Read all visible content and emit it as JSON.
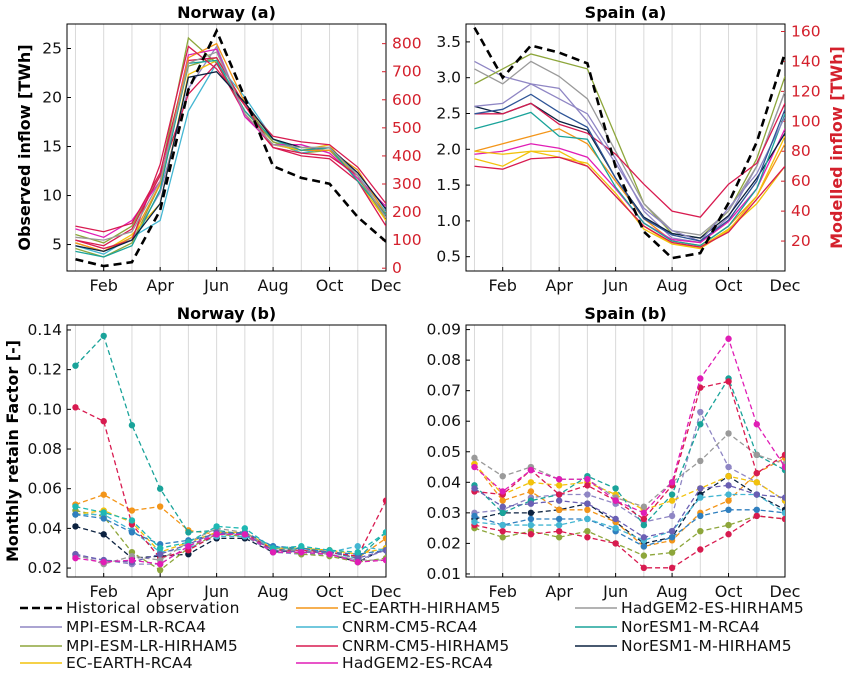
{
  "chart_data": [
    {
      "type": "line",
      "title": "Norway (a)",
      "ylabel": "Observed inflow [TWh]",
      "y2label": "",
      "xticks": [
        "Feb",
        "Apr",
        "Jun",
        "Aug",
        "Oct",
        "Dec"
      ],
      "x": [
        1,
        2,
        3,
        4,
        5,
        6,
        7,
        8,
        9,
        10,
        11,
        12
      ],
      "ylim": [
        2.3,
        27.5
      ],
      "yticks": [
        5,
        10,
        15,
        20,
        25
      ],
      "y2lim": [
        -10,
        870
      ],
      "y2ticks": [
        0,
        100,
        200,
        300,
        400,
        500,
        600,
        700,
        800
      ],
      "observed": [
        3.5,
        2.8,
        3.2,
        8.5,
        20.8,
        26.8,
        20.0,
        13.0,
        11.8,
        11.2,
        7.8,
        5.3
      ],
      "models_right_axis": [
        [
          90,
          60,
          100,
          270,
          640,
          790,
          540,
          440,
          420,
          420,
          340,
          210
        ],
        [
          70,
          40,
          90,
          300,
          720,
          750,
          580,
          450,
          420,
          420,
          320,
          190
        ],
        [
          120,
          90,
          150,
          330,
          820,
          730,
          560,
          450,
          410,
          420,
          330,
          170
        ],
        [
          80,
          50,
          110,
          170,
          560,
          730,
          610,
          460,
          410,
          430,
          330,
          200
        ],
        [
          90,
          60,
          120,
          230,
          690,
          740,
          550,
          440,
          420,
          440,
          310,
          170
        ],
        [
          100,
          80,
          140,
          330,
          620,
          730,
          550,
          430,
          400,
          390,
          310,
          150
        ],
        [
          140,
          110,
          170,
          310,
          760,
          780,
          540,
          440,
          440,
          410,
          320,
          220
        ],
        [
          150,
          130,
          160,
          340,
          740,
          750,
          580,
          470,
          450,
          440,
          360,
          230
        ],
        [
          90,
          60,
          110,
          300,
          750,
          800,
          590,
          460,
          420,
          420,
          350,
          190
        ],
        [
          60,
          40,
          80,
          280,
          730,
          740,
          560,
          460,
          420,
          430,
          310,
          190
        ],
        [
          100,
          70,
          100,
          370,
          790,
          710,
          580,
          430,
          410,
          400,
          330,
          180
        ],
        [
          80,
          60,
          100,
          230,
          680,
          700,
          590,
          460,
          430,
          430,
          340,
          210
        ],
        [
          110,
          100,
          130,
          310,
          730,
          770,
          550,
          440,
          430,
          430,
          330,
          180
        ]
      ]
    },
    {
      "type": "line",
      "title": "Spain (a)",
      "ylabel": "",
      "y2label": "Modelled inflow [TWh]",
      "xticks": [
        "Feb",
        "Apr",
        "Jun",
        "Aug",
        "Oct",
        "Dec"
      ],
      "x": [
        1,
        2,
        3,
        4,
        5,
        6,
        7,
        8,
        9,
        10,
        11,
        12
      ],
      "ylim": [
        0.3,
        3.75
      ],
      "yticks": [
        0.5,
        1.0,
        1.5,
        2.0,
        2.5,
        3.0,
        3.5
      ],
      "y2lim": [
        0,
        165
      ],
      "y2ticks": [
        20,
        40,
        60,
        80,
        100,
        120,
        140,
        160
      ],
      "observed": [
        3.7,
        3.0,
        3.45,
        3.35,
        3.2,
        1.75,
        0.85,
        0.48,
        0.55,
        1.25,
        2.1,
        3.35
      ],
      "models_right_axis": [
        [
          140,
          130,
          125,
          115,
          105,
          75,
          40,
          22,
          19,
          36,
          70,
          120
        ],
        [
          125,
          135,
          145,
          140,
          135,
          90,
          45,
          25,
          22,
          40,
          75,
          130
        ],
        [
          135,
          125,
          140,
          130,
          115,
          80,
          45,
          27,
          24,
          40,
          70,
          120
        ],
        [
          75,
          70,
          80,
          80,
          70,
          50,
          30,
          18,
          16,
          28,
          45,
          70
        ],
        [
          80,
          85,
          90,
          95,
          85,
          60,
          35,
          20,
          17,
          30,
          50,
          85
        ],
        [
          78,
          80,
          85,
          82,
          76,
          55,
          32,
          21,
          19,
          33,
          55,
          95
        ],
        [
          110,
          105,
          112,
          100,
          94,
          62,
          36,
          25,
          22,
          37,
          62,
          92
        ],
        [
          95,
          100,
          106,
          90,
          88,
          56,
          32,
          20,
          17,
          30,
          55,
          105
        ],
        [
          80,
          78,
          80,
          76,
          72,
          52,
          28,
          18,
          15,
          27,
          50,
          90
        ],
        [
          105,
          105,
          112,
          98,
          92,
          78,
          58,
          40,
          36,
          58,
          72,
          112
        ],
        [
          110,
          112,
          125,
          122,
          100,
          72,
          42,
          27,
          20,
          42,
          65,
          103
        ],
        [
          105,
          108,
          118,
          106,
          96,
          62,
          35,
          24,
          20,
          34,
          60,
          108
        ],
        [
          70,
          68,
          75,
          76,
          70,
          50,
          30,
          19,
          16,
          26,
          48,
          70
        ]
      ]
    },
    {
      "type": "line",
      "title": "Norway (b)",
      "ylabel": "Monthly retain Factor [-]",
      "xticks": [
        "Feb",
        "Apr",
        "Jun",
        "Aug",
        "Oct",
        "Dec"
      ],
      "x": [
        1,
        2,
        3,
        4,
        5,
        6,
        7,
        8,
        9,
        10,
        11,
        12
      ],
      "ylim": [
        0.0155,
        0.1425
      ],
      "yticks": [
        0.02,
        0.04,
        0.06,
        0.08,
        0.1,
        0.12,
        0.14
      ],
      "series": [
        [
          0.041,
          0.037,
          0.025,
          0.026,
          0.027,
          0.035,
          0.035,
          0.028,
          0.029,
          0.027,
          0.023,
          0.03
        ],
        [
          0.026,
          0.024,
          0.022,
          0.022,
          0.031,
          0.038,
          0.036,
          0.028,
          0.027,
          0.027,
          0.024,
          0.029
        ],
        [
          0.049,
          0.046,
          0.028,
          0.019,
          0.03,
          0.037,
          0.036,
          0.03,
          0.027,
          0.026,
          0.023,
          0.025
        ],
        [
          0.052,
          0.057,
          0.049,
          0.051,
          0.039,
          0.037,
          0.037,
          0.03,
          0.03,
          0.029,
          0.025,
          0.035
        ],
        [
          0.047,
          0.049,
          0.043,
          0.028,
          0.033,
          0.038,
          0.038,
          0.03,
          0.03,
          0.029,
          0.027,
          0.03
        ],
        [
          0.047,
          0.047,
          0.039,
          0.028,
          0.03,
          0.036,
          0.036,
          0.031,
          0.029,
          0.028,
          0.031,
          0.029
        ],
        [
          0.122,
          0.137,
          0.092,
          0.06,
          0.038,
          0.039,
          0.037,
          0.029,
          0.03,
          0.028,
          0.025,
          0.038
        ],
        [
          0.101,
          0.094,
          0.042,
          0.025,
          0.029,
          0.037,
          0.038,
          0.029,
          0.029,
          0.028,
          0.026,
          0.054
        ],
        [
          0.027,
          0.022,
          0.026,
          0.024,
          0.033,
          0.04,
          0.038,
          0.029,
          0.029,
          0.027,
          0.024,
          0.024
        ],
        [
          0.047,
          0.045,
          0.038,
          0.032,
          0.034,
          0.037,
          0.038,
          0.031,
          0.03,
          0.028,
          0.027,
          0.029
        ],
        [
          0.027,
          0.024,
          0.023,
          0.027,
          0.032,
          0.038,
          0.037,
          0.029,
          0.028,
          0.028,
          0.025,
          0.029
        ],
        [
          0.051,
          0.048,
          0.044,
          0.03,
          0.033,
          0.041,
          0.04,
          0.03,
          0.031,
          0.029,
          0.028,
          0.038
        ],
        [
          0.025,
          0.023,
          0.024,
          0.022,
          0.031,
          0.037,
          0.037,
          0.028,
          0.028,
          0.027,
          0.023,
          0.024
        ]
      ]
    },
    {
      "type": "line",
      "title": "Spain (b)",
      "ylabel": "",
      "xticks": [
        "Feb",
        "Apr",
        "Jun",
        "Aug",
        "Oct",
        "Dec"
      ],
      "x": [
        1,
        2,
        3,
        4,
        5,
        6,
        7,
        8,
        9,
        10,
        11,
        12
      ],
      "ylim": [
        0.009,
        0.0915
      ],
      "yticks": [
        0.01,
        0.02,
        0.03,
        0.04,
        0.05,
        0.06,
        0.07,
        0.08,
        0.09
      ],
      "series": [
        [
          0.028,
          0.03,
          0.03,
          0.031,
          0.033,
          0.027,
          0.02,
          0.022,
          0.036,
          0.042,
          0.036,
          0.031
        ],
        [
          0.03,
          0.031,
          0.035,
          0.036,
          0.036,
          0.033,
          0.027,
          0.029,
          0.063,
          0.045,
          0.04,
          0.034
        ],
        [
          0.025,
          0.022,
          0.024,
          0.022,
          0.024,
          0.02,
          0.016,
          0.017,
          0.024,
          0.026,
          0.029,
          0.028
        ],
        [
          0.046,
          0.034,
          0.037,
          0.031,
          0.031,
          0.027,
          0.019,
          0.021,
          0.03,
          0.034,
          0.043,
          0.048
        ],
        [
          0.046,
          0.036,
          0.04,
          0.039,
          0.04,
          0.036,
          0.031,
          0.034,
          0.038,
          0.042,
          0.04,
          0.034
        ],
        [
          0.039,
          0.03,
          0.034,
          0.036,
          0.042,
          0.038,
          0.026,
          0.036,
          0.059,
          0.074,
          0.049,
          0.044
        ],
        [
          0.029,
          0.026,
          0.028,
          0.028,
          0.028,
          0.024,
          0.019,
          0.022,
          0.029,
          0.031,
          0.031,
          0.03
        ],
        [
          0.026,
          0.024,
          0.023,
          0.024,
          0.022,
          0.02,
          0.012,
          0.012,
          0.018,
          0.023,
          0.029,
          0.028
        ],
        [
          0.048,
          0.042,
          0.045,
          0.041,
          0.041,
          0.035,
          0.032,
          0.04,
          0.047,
          0.056,
          0.049,
          0.046
        ],
        [
          0.027,
          0.026,
          0.026,
          0.026,
          0.028,
          0.025,
          0.021,
          0.024,
          0.035,
          0.036,
          0.036,
          0.03
        ],
        [
          0.037,
          0.036,
          0.044,
          0.036,
          0.039,
          0.034,
          0.028,
          0.039,
          0.071,
          0.073,
          0.043,
          0.049
        ],
        [
          0.038,
          0.032,
          0.033,
          0.034,
          0.033,
          0.028,
          0.022,
          0.024,
          0.038,
          0.039,
          0.036,
          0.035
        ],
        [
          0.045,
          0.037,
          0.044,
          0.041,
          0.041,
          0.034,
          0.03,
          0.04,
          0.074,
          0.087,
          0.059,
          0.045
        ]
      ]
    }
  ],
  "legend": [
    {
      "label": "Historical observation",
      "color": "#000000",
      "dashed": true
    },
    {
      "label": "MPI-ESM-LR-RCA4",
      "color": "#8f86c4",
      "dashed": false
    },
    {
      "label": "MPI-ESM-LR-HIRHAM5",
      "color": "#8da63b",
      "dashed": false
    },
    {
      "label": "EC-EARTH-RCA4",
      "color": "#f2c20c",
      "dashed": false
    },
    {
      "label": "EC-EARTH-HIRHAM5",
      "color": "#f39519",
      "dashed": false
    },
    {
      "label": "CNRM-CM5-RCA4",
      "color": "#44b6d2",
      "dashed": false
    },
    {
      "label": "CNRM-CM5-HIRHAM5",
      "color": "#d81b50",
      "dashed": false
    },
    {
      "label": "HadGEM2-ES-RCA4",
      "color": "#e01db5",
      "dashed": false
    },
    {
      "label": "HadGEM2-ES-HIRHAM5",
      "color": "#9a9a9a",
      "dashed": false
    },
    {
      "label": "NorESM1-M-RCA4",
      "color": "#1aa39a",
      "dashed": false
    },
    {
      "label": "NorESM1-M-HIRHAM5",
      "color": "#0c2240",
      "dashed": false
    }
  ],
  "series_colors_b": [
    "#0c2240",
    "#8f86c4",
    "#8da63b",
    "#f39519",
    "#f2c20c",
    "#44b6d2",
    "#1aa39a",
    "#d81b50",
    "#9a9a9a",
    "#2f7fbf",
    "#6a5fb3",
    "#1fb8b3",
    "#e01db5"
  ],
  "series_colors_b_es": [
    "#0c2240",
    "#8f86c4",
    "#8da63b",
    "#f39519",
    "#f2c20c",
    "#1aa39a",
    "#2f7fbf",
    "#d81b50",
    "#9a9a9a",
    "#44b6d2",
    "#d81b50",
    "#6a5fb3",
    "#e01db5"
  ],
  "series_colors_a": [
    "#8f86c4",
    "#8da63b",
    "#8da63b",
    "#44b6d2",
    "#f2c20c",
    "#d81b50",
    "#e01db5",
    "#d81b50",
    "#f39519",
    "#1aa39a",
    "#d81b50",
    "#0c2240",
    "#9a9a9a"
  ],
  "series_colors_a_es": [
    "#8f86c4",
    "#8da63b",
    "#9a9a9a",
    "#f2c20c",
    "#f39519",
    "#e01db5",
    "#0c2240",
    "#1aa39a",
    "#f2c20c",
    "#d81b50",
    "#8f86c4",
    "#2f5597",
    "#d81b50"
  ],
  "right_axis_color": "#d4202c"
}
